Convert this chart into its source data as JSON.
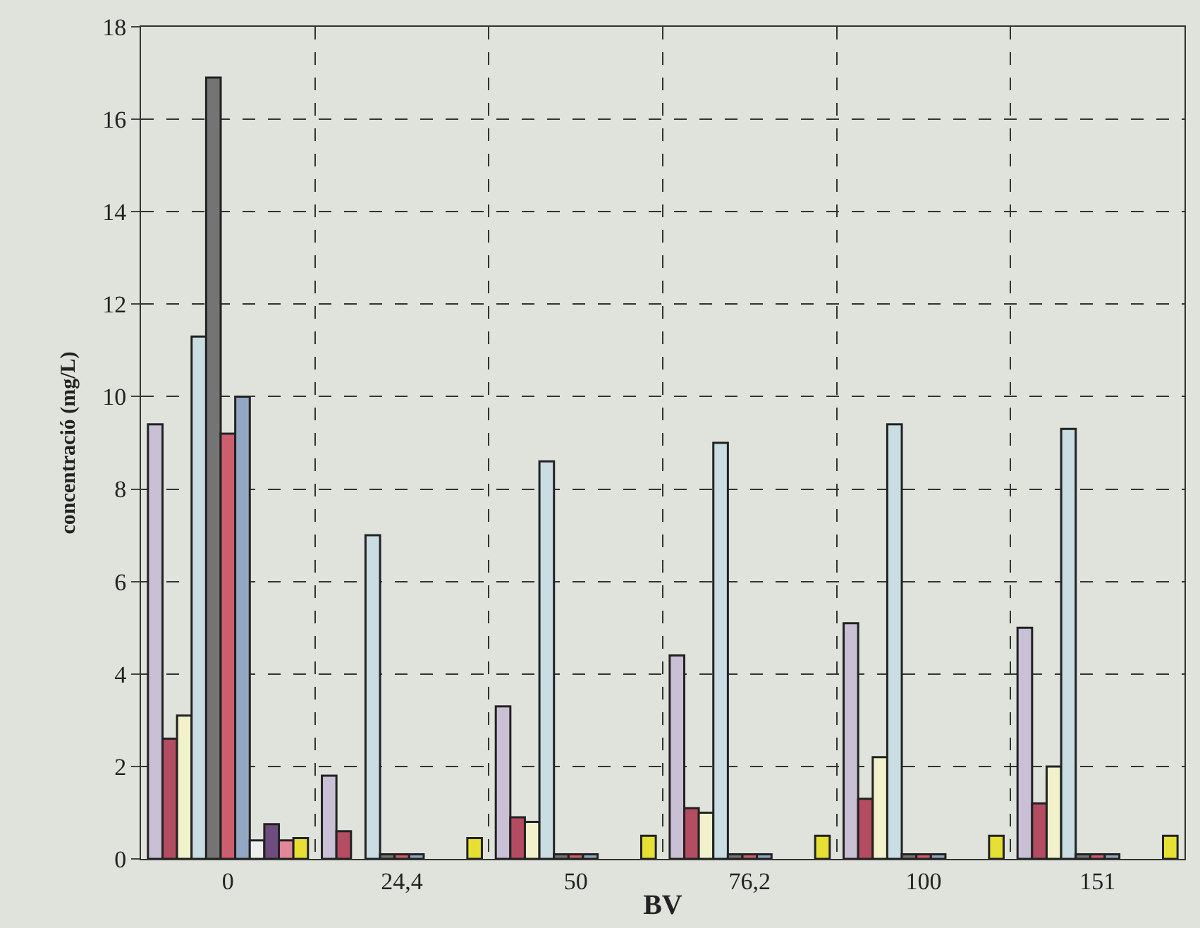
{
  "chart_data": {
    "type": "bar",
    "xlabel": "BV",
    "ylabel": "concentració (mg/L)",
    "categories": [
      "0",
      "24,4",
      "50",
      "76,2",
      "100",
      "151"
    ],
    "series": [
      {
        "color": "#c9c0d6",
        "values": [
          9.4,
          1.8,
          3.3,
          4.4,
          5.1,
          5.0
        ]
      },
      {
        "color": "#b44c62",
        "values": [
          2.6,
          0.6,
          0.9,
          1.1,
          1.3,
          1.2
        ]
      },
      {
        "color": "#f1f1cc",
        "values": [
          3.1,
          null,
          0.8,
          1.0,
          2.2,
          2.0
        ]
      },
      {
        "color": "#c9dde2",
        "values": [
          11.3,
          7.0,
          8.6,
          9.0,
          9.4,
          9.3
        ]
      },
      {
        "color": "#747474",
        "values": [
          16.9,
          0.1,
          0.1,
          0.1,
          0.1,
          0.1
        ]
      },
      {
        "color": "#cc5e6e",
        "values": [
          9.2,
          0.1,
          0.1,
          0.1,
          0.1,
          0.1
        ]
      },
      {
        "color": "#93a6c2",
        "values": [
          10.0,
          0.1,
          0.1,
          0.1,
          0.1,
          0.1
        ]
      },
      {
        "color": "#eeeeee",
        "values": [
          0.4,
          null,
          null,
          null,
          null,
          null
        ]
      },
      {
        "color": "#6e4c80",
        "values": [
          0.75,
          null,
          null,
          null,
          null,
          null
        ]
      },
      {
        "color": "#e0889a",
        "values": [
          0.4,
          null,
          null,
          null,
          null,
          null
        ]
      },
      {
        "color": "#e6e034",
        "values": [
          0.45,
          0.45,
          0.5,
          0.5,
          0.5,
          0.5
        ]
      }
    ],
    "ylim": [
      0,
      18
    ],
    "yticks": [
      0,
      2,
      4,
      6,
      8,
      10,
      12,
      14,
      16,
      18
    ],
    "grid": true
  }
}
